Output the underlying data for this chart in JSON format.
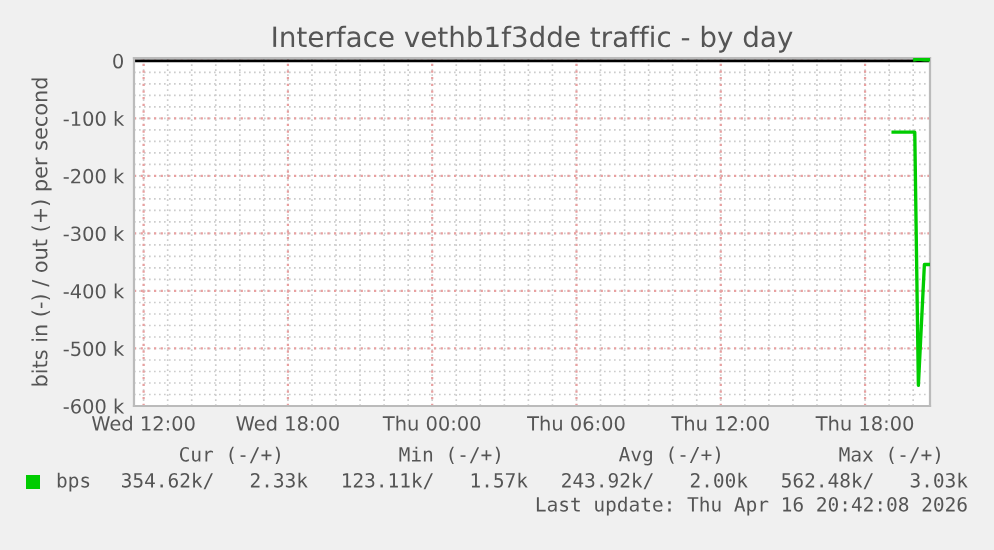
{
  "chart_data": {
    "type": "line",
    "title": "Interface vethb1f3dde traffic - by day",
    "ylabel": "bits in (-) / out (+) per second",
    "xlim": [
      "2026-04-15T11:36",
      "2026-04-16T20:42"
    ],
    "xticks": [
      {
        "value": "2026-04-15T12:00",
        "label": "Wed 12:00"
      },
      {
        "value": "2026-04-15T18:00",
        "label": "Wed 18:00"
      },
      {
        "value": "2026-04-16T00:00",
        "label": "Thu 00:00"
      },
      {
        "value": "2026-04-16T06:00",
        "label": "Thu 06:00"
      },
      {
        "value": "2026-04-16T12:00",
        "label": "Thu 12:00"
      },
      {
        "value": "2026-04-16T18:00",
        "label": "Thu 18:00"
      }
    ],
    "ylim": [
      -600000,
      5000
    ],
    "yticks": [
      {
        "value": -600000,
        "label": "-600 k"
      },
      {
        "value": -500000,
        "label": "-500 k"
      },
      {
        "value": -400000,
        "label": "-400 k"
      },
      {
        "value": -300000,
        "label": "-300 k"
      },
      {
        "value": -200000,
        "label": "-200 k"
      },
      {
        "value": -100000,
        "label": "-100 k"
      },
      0
    ],
    "grid": true,
    "legend": "bottom left",
    "ref_lines": [
      {
        "axis": "y",
        "value": 0,
        "color": "#000000"
      }
    ],
    "series": [
      {
        "name": "bps",
        "color": "#00cc00",
        "x": [
          "2026-04-16T19:10",
          "2026-04-16T20:04",
          "2026-04-16T20:13",
          "2026-04-16T20:28",
          "2026-04-16T20:42"
        ],
        "values": [
          -124000,
          -124000,
          -564000,
          -354000,
          -354000
        ]
      },
      {
        "color": "#00cc00",
        "x": [
          "2026-04-16T20:04",
          "2026-04-16T20:13",
          "2026-04-16T20:28",
          "2026-04-16T20:42"
        ],
        "values": [
          2000,
          3000,
          2000,
          2000
        ]
      }
    ],
    "annotations": [
      "Cur (-/+)",
      "Min (-/+)",
      "Avg (-/+)",
      "Max (-/+)",
      "354.62k/   2.33k",
      "123.11k/   1.57k",
      "243.92k/   2.00k",
      "562.48k/   3.03k",
      "Last update: Thu Apr 16 20:42:08 2026"
    ]
  }
}
